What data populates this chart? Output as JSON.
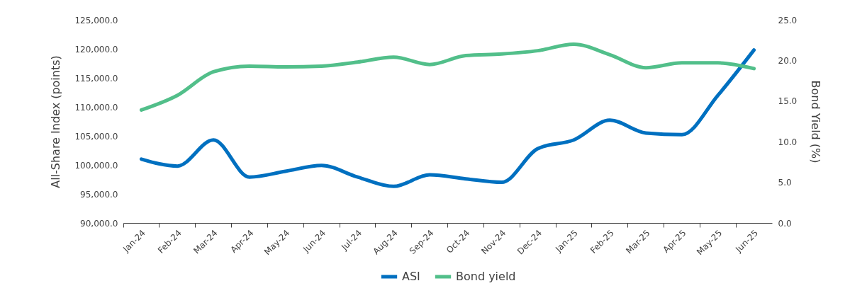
{
  "chart_data": {
    "type": "line",
    "ylabel": "All-Share Index (points)",
    "y2label": "Bond Yield (%)",
    "categories": [
      "Jan-24",
      "Feb-24",
      "Mar-24",
      "Apr-24",
      "May-24",
      "Jun-24",
      "Jul-24",
      "Aug-24",
      "Sep-24",
      "Oct-24",
      "Nov-24",
      "Dec-24",
      "Jan-25",
      "Feb-25",
      "Mar-25",
      "Apr-25",
      "May-25",
      "Jun-25"
    ],
    "series": [
      {
        "name": "ASI",
        "color": "#0070c0",
        "values": [
          101000,
          99800,
          104300,
          97900,
          98900,
          99900,
          97900,
          96300,
          98300,
          97600,
          97000,
          102800,
          104300,
          107700,
          105500,
          105200,
          112000,
          119800
        ]
      },
      {
        "name": "Bond yield",
        "color": "#52bf8a",
        "axis": "y2",
        "values": [
          13.9,
          15.7,
          18.6,
          19.3,
          19.2,
          19.3,
          19.8,
          20.4,
          19.5,
          20.6,
          20.8,
          21.2,
          22.0,
          20.7,
          19.1,
          19.7,
          19.7,
          19.0
        ]
      }
    ],
    "ylim": [
      90000,
      125000
    ],
    "yticks": [
      {
        "value": 90000,
        "label": "90,000.0"
      },
      {
        "value": 95000,
        "label": "95,000.0"
      },
      {
        "value": 100000,
        "label": "100,000.0"
      },
      {
        "value": 105000,
        "label": "105,000.0"
      },
      {
        "value": 110000,
        "label": "110,000.0"
      },
      {
        "value": 115000,
        "label": "115,000.0"
      },
      {
        "value": 120000,
        "label": "120,000.0"
      },
      {
        "value": 125000,
        "label": "125,000.0"
      }
    ],
    "y2lim": [
      0,
      25
    ],
    "y2ticks": [
      {
        "value": 0,
        "label": "0.0"
      },
      {
        "value": 5,
        "label": "5.0"
      },
      {
        "value": 10,
        "label": "10.0"
      },
      {
        "value": 15,
        "label": "15.0"
      },
      {
        "value": 20,
        "label": "20.0"
      },
      {
        "value": 25,
        "label": "25.0"
      }
    ],
    "legend": "bottom",
    "grid": false,
    "marker": "none",
    "line_style": "solid"
  }
}
